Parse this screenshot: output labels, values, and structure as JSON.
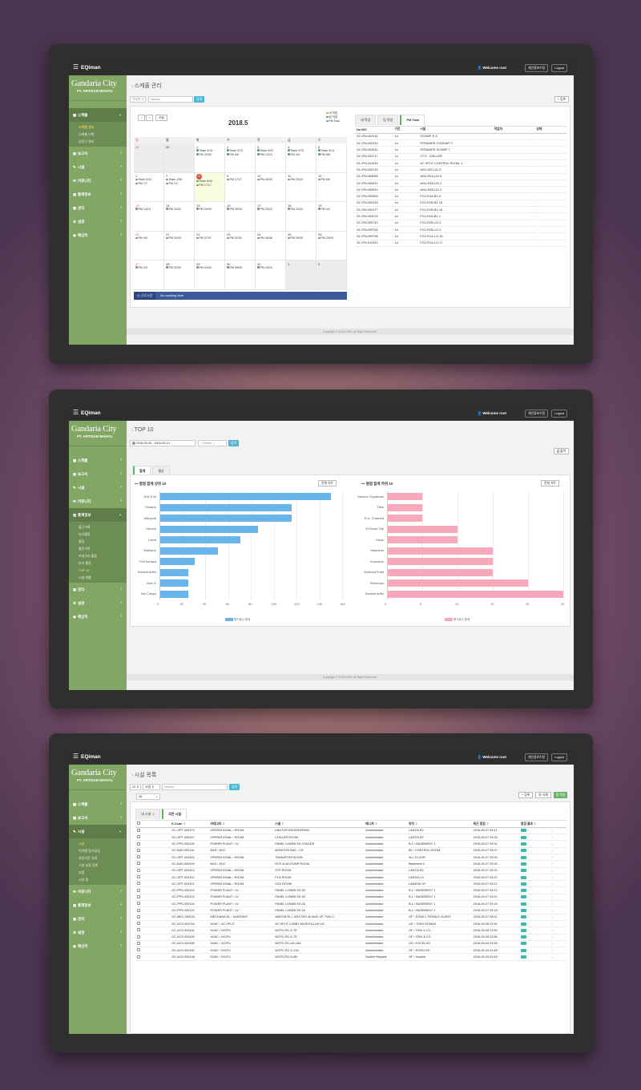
{
  "app": {
    "logo": "EQiman",
    "welcome": "Welcome root",
    "profile_btn": "개인정보수정",
    "logout": "Logout",
    "brand_title": "Gandaria City",
    "brand_sub": "PT. ARTISAN WAHYU",
    "footer": "Copyright © 2016 KIES. All Right Reserved."
  },
  "menu": {
    "schedule": "스케쥴",
    "report": "보고서",
    "facility": "시설",
    "community": "커뮤니티",
    "stats": "통계정보",
    "manage": "관리",
    "settings": "설정",
    "messenger": "메신저"
  },
  "s1": {
    "title": "스케쥴 관리",
    "filter": "작업자",
    "search_ph": "Search",
    "search_btn": "검색",
    "add_btn": "등록",
    "sub": [
      "스케쥴 관리",
      "스케쥴 이력",
      "상용구 관리"
    ],
    "today_btn": "오늘",
    "month": "2018.5",
    "legend": [
      "내 작업",
      "팀 작업",
      "PM Task"
    ],
    "weekdays": [
      "일",
      "월",
      "화",
      "수",
      "목",
      "금",
      "토"
    ],
    "weeks": [
      [
        {
          "d": "29",
          "g": true,
          "ev": []
        },
        {
          "d": "30",
          "g": true,
          "ev": []
        },
        {
          "d": "1",
          "ev": [
            "Team 5/19",
            "PM 32/32"
          ]
        },
        {
          "d": "2",
          "ev": [
            "Team 0/72",
            "PM 6/6"
          ]
        },
        {
          "d": "3",
          "ev": [
            "Team 5/57",
            "PM 13/13"
          ]
        },
        {
          "d": "4",
          "ev": [
            "Team 0/70",
            "PM 4/4"
          ]
        },
        {
          "d": "5",
          "ev": [
            "Team 5/14",
            "PM 8/8"
          ]
        }
      ],
      [
        {
          "d": "6",
          "ev": [
            "Team 0/31",
            "PM 7/7"
          ]
        },
        {
          "d": "7",
          "ev": [
            "Team 1/95",
            "PM 1/1"
          ]
        },
        {
          "d": "8",
          "t": true,
          "ev": [
            "Team 8/40",
            "PM 17/17"
          ]
        },
        {
          "d": "9",
          "ev": [
            "PM 17/17"
          ]
        },
        {
          "d": "10",
          "ev": [
            "PM 20/20"
          ]
        },
        {
          "d": "11",
          "ev": [
            "PM 23/23"
          ]
        },
        {
          "d": "12",
          "ev": [
            "PM 6/6"
          ]
        }
      ],
      [
        {
          "d": "13",
          "ev": [
            "PM 14/14"
          ]
        },
        {
          "d": "14",
          "ev": [
            "PM 23/23"
          ]
        },
        {
          "d": "15",
          "ev": [
            "PM 29/29"
          ]
        },
        {
          "d": "16",
          "ev": [
            "PM 26/26"
          ]
        },
        {
          "d": "17",
          "ev": [
            "PM 23/23"
          ]
        },
        {
          "d": "18",
          "ev": [
            "PM 24/24"
          ]
        },
        {
          "d": "19",
          "ev": [
            "PM 4/4"
          ]
        }
      ],
      [
        {
          "d": "20",
          "ev": [
            "PM 9/9"
          ]
        },
        {
          "d": "21",
          "ev": [
            "PM 33/33"
          ]
        },
        {
          "d": "22",
          "ev": [
            "PM 37/37"
          ]
        },
        {
          "d": "23",
          "ev": [
            "PM 31/31"
          ]
        },
        {
          "d": "24",
          "ev": [
            "PM 46/46"
          ]
        },
        {
          "d": "25",
          "ev": [
            "PM 39/39"
          ]
        },
        {
          "d": "26",
          "ev": [
            "PM 25/25"
          ]
        }
      ],
      [
        {
          "d": "27",
          "ev": [
            "PM 3/3"
          ]
        },
        {
          "d": "28",
          "ev": [
            "PM 32/32"
          ]
        },
        {
          "d": "29",
          "ev": [
            "PM 34/34"
          ]
        },
        {
          "d": "30",
          "ev": [
            "PM 28/28"
          ]
        },
        {
          "d": "31",
          "ev": [
            "PM 24/24"
          ]
        },
        {
          "d": "1",
          "g": true,
          "ev": []
        },
        {
          "d": "2",
          "g": true,
          "ev": []
        }
      ]
    ],
    "nowork_label": "근무시간",
    "nowork": "No working time",
    "tabs": [
      "내 작업",
      "팀 작업",
      "PM Task"
    ],
    "cols": [
      "No.WO",
      "기간",
      "시설",
      "작업자",
      "상태"
    ],
    "rows": [
      [
        "GC-PM-002116",
        "1d",
        "SCHWP-R-5",
        "",
        "-"
      ],
      [
        "GC-PM-002244",
        "1d",
        "STRAINER CONDWP 2",
        "",
        "-"
      ],
      [
        "GC-PM-002531",
        "1d",
        "STRAINER SCHWP 7",
        "",
        "-"
      ],
      [
        "GC-PM-003717",
        "1d",
        "CT 5 - CHILLER",
        "",
        "-"
      ],
      [
        "GC-PM-004344",
        "1d",
        "AC SPLIT CONTROL ROOM. 1",
        "",
        "-"
      ],
      [
        "GC-PM-006729",
        "1d",
        "AHU-IDS-UG-3",
        "",
        "-"
      ],
      [
        "GC-PM-008896",
        "1d",
        "AHU-R2A-UG-5",
        "",
        "-"
      ],
      [
        "GC-PM-008910",
        "1d",
        "AHU-R1B-UG-1",
        "",
        "-"
      ],
      [
        "GC-PM-008924",
        "1d",
        "AHU-R1B-UG-2",
        "",
        "-"
      ],
      [
        "GC-PM-009053",
        "1d",
        "FCU-R1A-B1-3",
        "",
        "-"
      ],
      [
        "GC-PM-009163",
        "1d",
        "FCU-R1B-B1-18",
        "",
        "-"
      ],
      [
        "GC-PM-009177",
        "1d",
        "FCU-R1B-B1-1A",
        "",
        "-"
      ],
      [
        "GC-PM-009233",
        "1d",
        "FCU-R2A-B1-1",
        "",
        "-"
      ],
      [
        "GC-PM-009740",
        "1d",
        "FCU-R2B-LG-4",
        "",
        "-"
      ],
      [
        "GC-PM-009754",
        "1d",
        "FCU-R2B-LG-2",
        "",
        "-"
      ],
      [
        "GC-PM-009796",
        "1d",
        "FCU-R1A-LG-16",
        "",
        "-"
      ],
      [
        "GC-PM-010310",
        "1d",
        "FCU-R1A-LG-17",
        "",
        "-"
      ]
    ]
  },
  "s2": {
    "title": "TOP 10",
    "date_range": "2018-05-06 - 2018-05-12",
    "select_ph": "Select",
    "search_btn": "검색",
    "print_btn": "출력",
    "sub": [
      "출근기록",
      "부서활동",
      "활동",
      "활동기록",
      "카테고리 활동",
      "부서 활동",
      "TOP 10",
      "시설 현황"
    ],
    "tabs": [
      "합계",
      "평균"
    ],
    "left_title": "평점 합계 상위 10",
    "right_title": "평점 합계 하위 10",
    "btn_view": "전체 차트",
    "legend": "평가점수 합계",
    "chart_data": [
      {
        "type": "bar",
        "orientation": "horizontal",
        "title": "평점 합계 상위 10",
        "categories": [
          "Erik S.W",
          "Sudarto",
          "Wahyudi",
          "Hendry",
          "Luhut",
          "Madiarto",
          "Feri Ismaya",
          "Samsul Arifin",
          "Alan H",
          "Nur Cahyo"
        ],
        "values": [
          150,
          116,
          116,
          86,
          71,
          51,
          31,
          25,
          25,
          25
        ],
        "xlim": [
          0,
          160
        ],
        "ticks": [
          0,
          20,
          40,
          60,
          80,
          100,
          120,
          140,
          160
        ],
        "series_name": "평가점수 합계",
        "color": "#6ab4ec"
      },
      {
        "type": "bar",
        "orientation": "horizontal",
        "title": "평점 합계 하위 10",
        "categories": [
          "Mamun Suyatman",
          "Dian",
          "R.A. Chandra",
          "M.Room Tab",
          "Irwan",
          "Slamanto",
          "Kusnanto",
          "Achmad Fuad",
          "Rochman",
          "Samsul Arifin"
        ],
        "values": [
          5,
          5,
          5,
          10,
          10,
          15,
          15,
          15,
          20,
          25
        ],
        "xlim": [
          0,
          25
        ],
        "ticks": [
          0,
          5,
          10,
          15,
          20,
          25
        ],
        "series_name": "평가점수 합계",
        "color": "#f7a8bb"
      }
    ]
  },
  "s3": {
    "title": "시설 목록",
    "per_page": "20",
    "filter": "시설",
    "search_ph": "Search",
    "search_btn": "검색",
    "all": "All",
    "btn_add": "등록",
    "btn_del": "삭제",
    "btn_excel": "엑셀",
    "sub": [
      "시설",
      "이이템 정기점검",
      "유동기간 상태",
      "시설 부품 등록",
      "부품",
      "시설 맵"
    ],
    "tabs": [
      "내 시설",
      "모든 시설"
    ],
    "cols": [
      "E-Code",
      "카테고리",
      "시설",
      "매니저",
      "위치",
      "최근 점검",
      "점검 결과",
      ""
    ],
    "rows": [
      [
        "GC-OPT-000375",
        "OPERATIONAL › ROOM",
        "KANTOR ENGINEERING",
        "Administrator",
        "LANTAI B2",
        "2018-05-07 09:47"
      ],
      [
        "GC-OPT-000407",
        "OPERATIONAL › ROOM",
        "CHILLER ROOM",
        "Administrator",
        "LANTAI B2",
        "2018-05-07 09:33"
      ],
      [
        "GC-PPS-000105",
        "POWER PLANT › LV",
        "PANEL LVMDB SS CHILLER",
        "Administrator",
        "B-2 › BASEMENT 1",
        "2018-05-07 09:32"
      ],
      [
        "GC-BAS-000116",
        "BAS › DDC",
        "MONITOR BAS - CR",
        "Administrator",
        "B2 › CONTROL ROOM",
        "2018-05-07 09:27"
      ],
      [
        "GC-OPT-000416",
        "OPERATIONAL › ROOM",
        "TRANSPORTATION",
        "Administrator",
        "ALL FLOOR",
        "2018-05-07 09:26"
      ],
      [
        "GC-BAS-000009",
        "BAS › DDC",
        "RCP-N-B2-PUMP ROOM",
        "Administrator",
        "Basement 2",
        "2018-05-07 09:25"
      ],
      [
        "GC-OPT-000413",
        "OPERATIONAL › ROOM",
        "STP ROOM",
        "Administrator",
        "LANTAI B2",
        "2018-05-07 09:24"
      ],
      [
        "GC-OPT-000410",
        "OPERATIONAL › ROOM",
        "PLN ROOM",
        "Administrator",
        "LANTAI LG",
        "2018-05-07 09:22"
      ],
      [
        "GC-OPT-000411",
        "OPERATIONAL › ROOM",
        "GAS ROOM",
        "Administrator",
        "LANATAI GF",
        "2018-05-07 09:21"
      ],
      [
        "GC-PPS-000101",
        "POWER PLANT › LV",
        "PANEL LVMDB SS 2B",
        "Administrator",
        "B-1 › BASEMENT 1",
        "2018-05-07 09:21"
      ],
      [
        "GC-PPS-000102",
        "POWER PLANT › LV",
        "PANEL LVMDB SS 1B",
        "Administrator",
        "B-1 › BASEMENT 1",
        "2018-05-07 09:20"
      ],
      [
        "GC-PPS-000104",
        "POWER PLANT › LV",
        "PANEL LVMDB SS 2A",
        "Administrator",
        "B-1 › BASEMENT 1",
        "2018-05-07 09:19"
      ],
      [
        "GC-PPS-000103",
        "POWER PLANT › LV",
        "PANEL LVMDB SS 1A",
        "Administrator",
        "B-1 › BASEMENT 1",
        "2018-05-07 09:18"
      ],
      [
        "GC-MEC-000231",
        "MECHANICAL › SANITARY",
        "WASTAFEL L 54H/TEN 40 AWX GF-TWG C",
        "Administrator",
        "GF › ZONA C FEMALE GUEST",
        "2018-05-07 08:01"
      ],
      [
        "GC-ACS-000794",
        "HVAC › AC SPLIT",
        "AC SPLIT LOBBY MUSHOLLAH UG",
        "Administrator",
        "UG › TONY ROMAS",
        "2018-05-05 22:59"
      ],
      [
        "GC-ACS-000191",
        "HVAC › WCPU",
        "WCPU R1-G-7E",
        "Administrator",
        "GF › FISH & CO",
        "2018-05-05 22:59"
      ],
      [
        "GC-ACS-000190",
        "HVAC › WCPU",
        "WCPU R1-G-7D",
        "Administrator",
        "GF › FISH & CO",
        "2018-05-05 22:58"
      ],
      [
        "GC-ACS-000180",
        "HVAC › WCPU",
        "WCPU R1-UG-16A",
        "Administrator",
        "UG › EXCELSO",
        "2018-05-04 22:48"
      ],
      [
        "GC-ACS-000181",
        "HVAC › WCPU",
        "WCPU R1-G-11A",
        "Administrator",
        "GF › EXCELSO",
        "2018-05-04 22:48"
      ],
      [
        "GC-ACS-000146",
        "HVAC › WCPU",
        "WCPU R2-G-6B",
        "Dedlen Haryadi",
        "GF › hoolala",
        "2018-05-04 22:46"
      ]
    ]
  }
}
